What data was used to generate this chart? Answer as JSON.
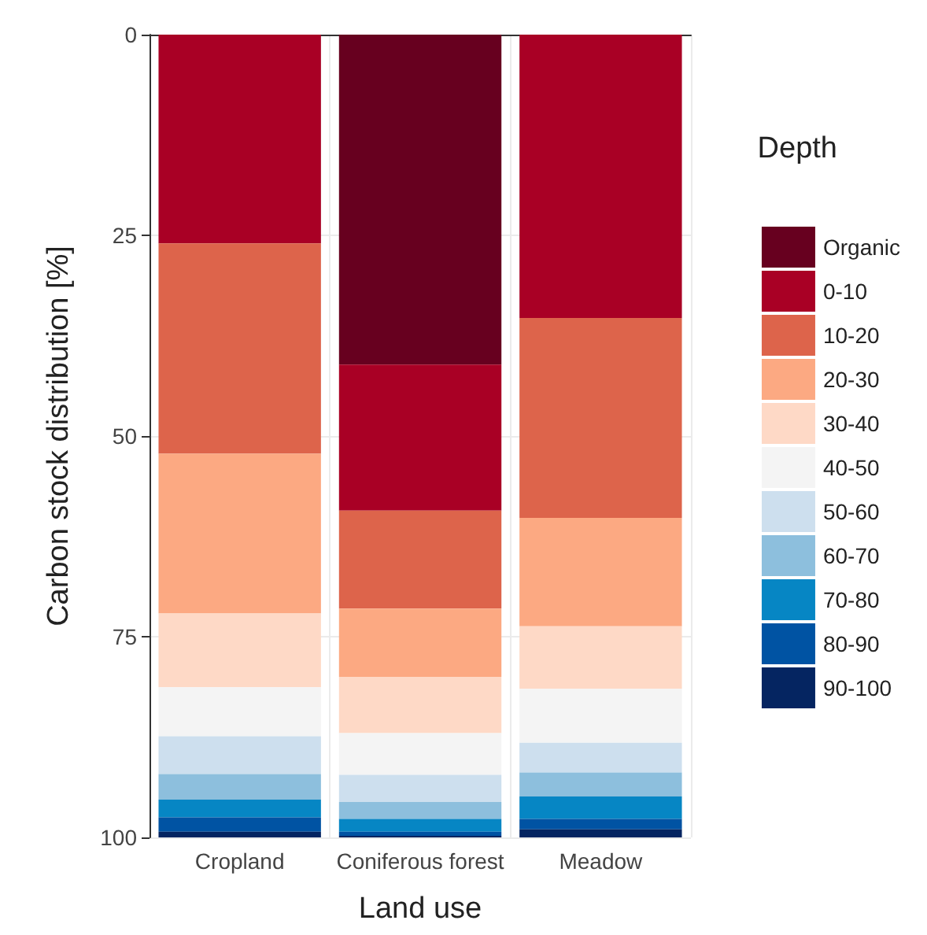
{
  "chart_data": {
    "type": "bar",
    "stacked": true,
    "xlabel": "Land use",
    "ylabel": "Carbon stock distribution [%]",
    "legend_title": "Depth",
    "legend": "right",
    "grid": true,
    "categories": [
      "Cropland",
      "Coniferous forest",
      "Meadow"
    ],
    "ylim": [
      100,
      0
    ],
    "yticks": [
      0,
      25,
      50,
      75,
      100
    ],
    "series": [
      {
        "name": "Organic",
        "color": "#67001f",
        "values": [
          0,
          41.1,
          0
        ]
      },
      {
        "name": "0-10",
        "color": "#a90025",
        "values": [
          26.0,
          18.2,
          35.3
        ]
      },
      {
        "name": "10-20",
        "color": "#dd644b",
        "values": [
          26.2,
          12.2,
          24.9
        ]
      },
      {
        "name": "20-30",
        "color": "#fca982",
        "values": [
          19.9,
          8.5,
          13.5
        ]
      },
      {
        "name": "30-40",
        "color": "#fed9c6",
        "values": [
          9.2,
          7.0,
          7.8
        ]
      },
      {
        "name": "40-50",
        "color": "#f4f4f4",
        "values": [
          6.1,
          5.2,
          6.7
        ]
      },
      {
        "name": "50-60",
        "color": "#cddfee",
        "values": [
          4.7,
          3.4,
          3.7
        ]
      },
      {
        "name": "60-70",
        "color": "#8dbfdd",
        "values": [
          3.2,
          2.1,
          3.0
        ]
      },
      {
        "name": "70-80",
        "color": "#0686c4",
        "values": [
          2.2,
          1.6,
          2.8
        ]
      },
      {
        "name": "80-90",
        "color": "#0053a3",
        "values": [
          1.8,
          0.5,
          1.3
        ]
      },
      {
        "name": "90-100",
        "color": "#052561",
        "values": [
          0.7,
          0.2,
          1.0
        ]
      }
    ]
  }
}
